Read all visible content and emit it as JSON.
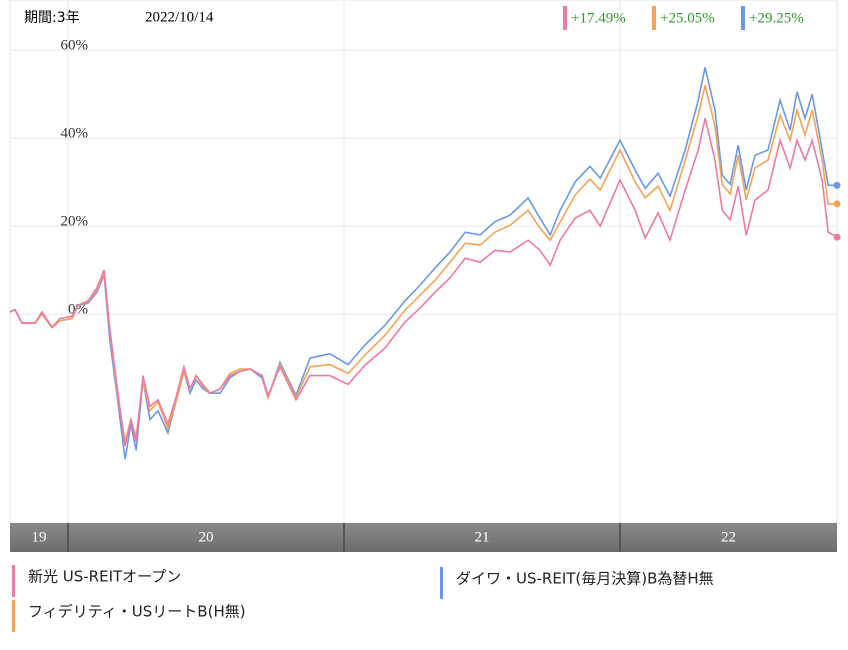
{
  "chart_data": {
    "type": "line",
    "period": "期間:3年",
    "date": "2022/10/14",
    "x": [
      2019.79,
      2019.808,
      2019.833,
      2019.881,
      2019.906,
      2019.942,
      2019.971,
      2020.015,
      2020.036,
      2020.073,
      2020.105,
      2020.131,
      2020.152,
      2020.181,
      2020.207,
      2020.228,
      2020.247,
      2020.272,
      2020.297,
      2020.326,
      2020.362,
      2020.391,
      2020.42,
      2020.442,
      2020.464,
      2020.489,
      2020.515,
      2020.551,
      2020.587,
      2020.623,
      2020.66,
      2020.703,
      2020.725,
      2020.768,
      2020.826,
      2020.877,
      2020.949,
      2021.015,
      2021.076,
      2021.149,
      2021.221,
      2021.276,
      2021.33,
      2021.384,
      2021.439,
      2021.493,
      2021.547,
      2021.602,
      2021.667,
      2021.71,
      2021.747,
      2021.783,
      2021.837,
      2021.891,
      2021.928,
      2022.0,
      2022.055,
      2022.091,
      2022.138,
      2022.181,
      2022.236,
      2022.283,
      2022.308,
      2022.344,
      2022.37,
      2022.399,
      2022.428,
      2022.457,
      2022.489,
      2022.536,
      2022.58,
      2022.616,
      2022.641,
      2022.67,
      2022.696,
      2022.732,
      2022.754,
      2022.786
    ],
    "series": [
      {
        "name": "新光 US-REITオープン",
        "color": "#f07aa0",
        "end_label": "+17.49%",
        "values": [
          0.5,
          1,
          -2,
          -2,
          0.5,
          -3,
          -1,
          -0.5,
          2,
          3,
          6,
          10,
          -3.5,
          -18,
          -30,
          -24,
          -29,
          -14,
          -21,
          -19.5,
          -25,
          -19,
          -12,
          -17,
          -14,
          -16,
          -18,
          -17,
          -14,
          -13,
          -12.5,
          -14,
          -18.5,
          -12,
          -19.5,
          -14,
          -14,
          -16,
          -11.6,
          -7.7,
          -1.8,
          1.4,
          5,
          8.2,
          12.7,
          11.8,
          14.5,
          14.1,
          16.8,
          14.5,
          11.1,
          16.8,
          21.8,
          23.6,
          20,
          30.5,
          23.6,
          17.3,
          23,
          16.8,
          28.2,
          37.3,
          44.5,
          35,
          23.6,
          21.4,
          29.1,
          17.9,
          25.9,
          28.2,
          39.5,
          33.2,
          39.5,
          35,
          39.5,
          30.5,
          18.6,
          17.49
        ]
      },
      {
        "name": "フィデリティ・USリートB(H無)",
        "color": "#f5a356",
        "end_label": "+25.05%",
        "values": [
          0.5,
          1,
          -2,
          -2,
          0,
          -3,
          -1.5,
          -1,
          2,
          2.8,
          5.5,
          9.5,
          -4,
          -19,
          -29,
          -24,
          -28,
          -15,
          -22,
          -20,
          -26,
          -20,
          -13,
          -17,
          -14,
          -16.5,
          -18,
          -17,
          -13.5,
          -12.5,
          -12.5,
          -14,
          -19,
          -11.5,
          -19,
          -12,
          -11.5,
          -13.5,
          -9.3,
          -4.8,
          0.9,
          4.3,
          7.7,
          11.8,
          16.1,
          15.7,
          18.6,
          20.2,
          23.6,
          19.5,
          16.8,
          20.9,
          27,
          30.7,
          28.2,
          37.3,
          30,
          26.4,
          29.1,
          23.6,
          35,
          45.2,
          52,
          42.7,
          29.5,
          27.3,
          36.1,
          25.9,
          33.2,
          35,
          45.2,
          39.5,
          46.4,
          40.7,
          46.4,
          35,
          25,
          25.05
        ]
      },
      {
        "name": "ダイワ・US-REIT(毎月決算)B為替H無",
        "color": "#6b98e6",
        "end_label": "+29.25%",
        "values": [
          0.5,
          1,
          -2,
          -2,
          0,
          -3,
          -1.5,
          -1,
          2,
          2.5,
          5,
          8.9,
          -6,
          -20,
          -33,
          -25,
          -31,
          -15,
          -24,
          -22,
          -27,
          -20,
          -13,
          -18,
          -15,
          -17,
          -18,
          -18,
          -14.5,
          -13,
          -12.5,
          -14.5,
          -19,
          -11,
          -18.5,
          -10,
          -9,
          -11.5,
          -7,
          -2.5,
          3,
          6.6,
          10.5,
          14.1,
          18.6,
          18,
          21,
          22.5,
          26.4,
          21.8,
          18,
          23.6,
          30,
          33.6,
          30.9,
          39.5,
          32.7,
          28.6,
          32,
          26.8,
          37.3,
          48.6,
          56.1,
          46.4,
          31.6,
          29.5,
          38.4,
          28.2,
          36.1,
          37.3,
          48.6,
          41.8,
          50.5,
          44.5,
          50,
          37.3,
          29.3,
          29.25
        ]
      }
    ],
    "xlim": [
      2019.79,
      2022.786
    ],
    "xticks": [
      {
        "value": 2019,
        "label": "19"
      },
      {
        "value": 2020,
        "label": "20"
      },
      {
        "value": 2021,
        "label": "21"
      },
      {
        "value": 2022,
        "label": "22"
      }
    ],
    "ylim": [
      -47.5,
      71.4
    ],
    "yticks": [
      {
        "value": 0,
        "label": "0%"
      },
      {
        "value": 20,
        "label": "20%"
      },
      {
        "value": 40,
        "label": "40%"
      },
      {
        "value": 60,
        "label": "60%"
      }
    ],
    "grid": true
  }
}
